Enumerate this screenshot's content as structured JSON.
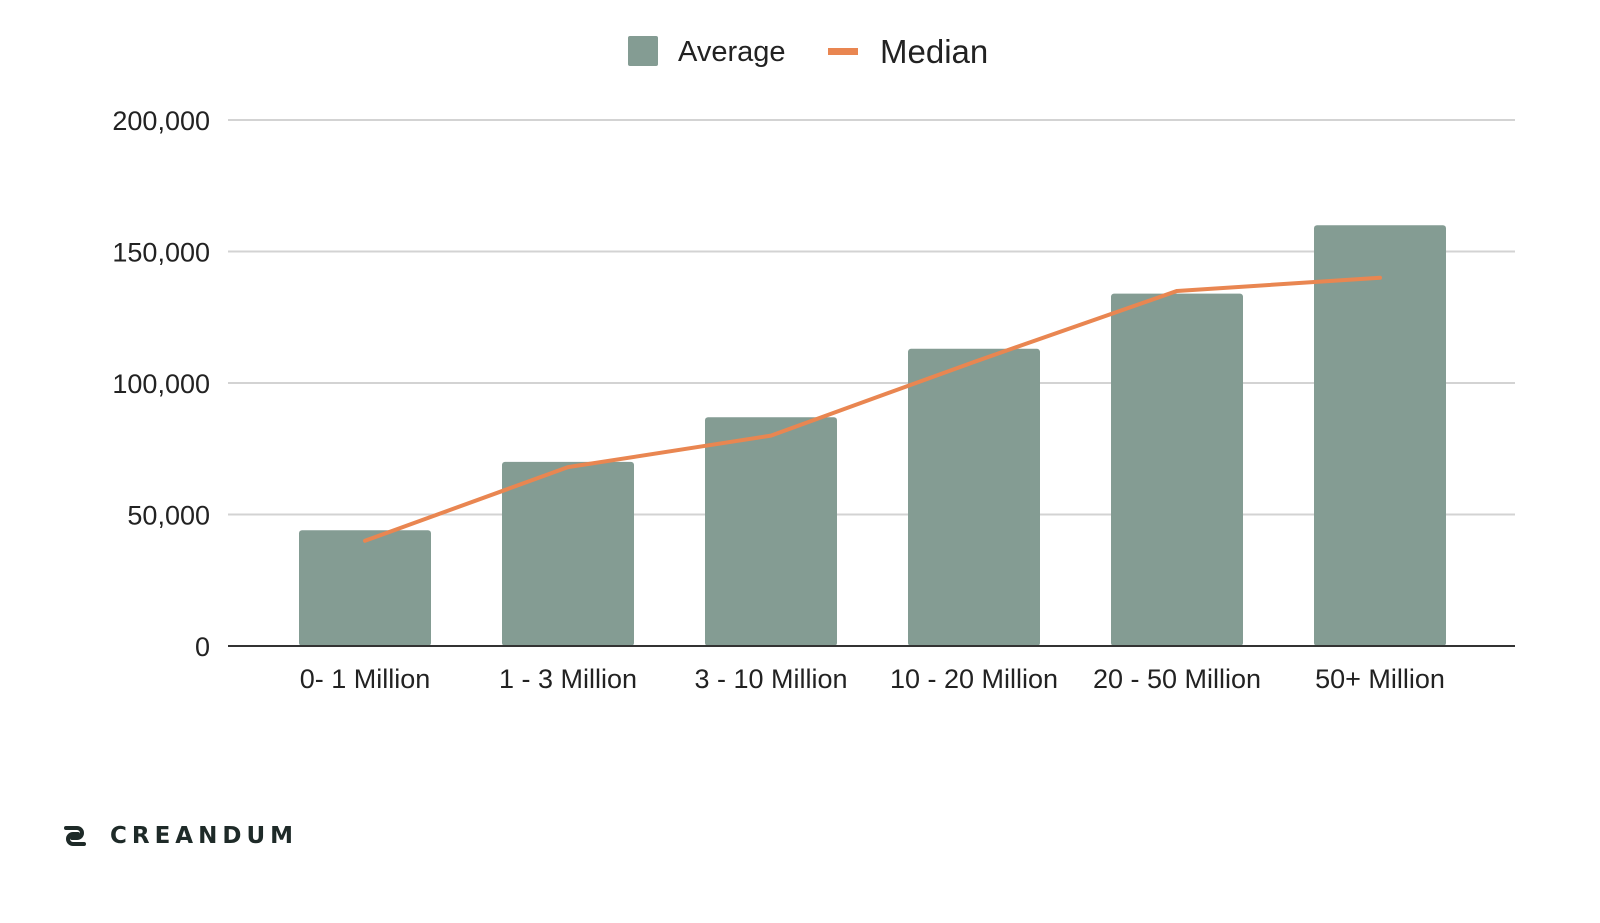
{
  "colors": {
    "average": "#849c93",
    "median": "#e98651",
    "grid": "#d3d3d3",
    "axis": "#333333",
    "text": "#222222"
  },
  "brand": {
    "name": "CREANDUM",
    "logo_icon": "chain-link-icon"
  },
  "chart_data": {
    "type": "bar",
    "title": "",
    "xlabel": "",
    "ylabel": "",
    "categories": [
      "0- 1 Million",
      "1 - 3 Million",
      "3 - 10 Million",
      "10 - 20 Million",
      "20 - 50 Million",
      "50+ Million"
    ],
    "series": [
      {
        "name": "Average",
        "type": "bar",
        "values": [
          44000,
          70000,
          87000,
          113000,
          134000,
          160000
        ]
      },
      {
        "name": "Median",
        "type": "line",
        "values": [
          40000,
          68000,
          80000,
          108000,
          135000,
          140000
        ]
      }
    ],
    "ylim": [
      0,
      200000
    ],
    "yticks": [
      0,
      50000,
      100000,
      150000,
      200000
    ],
    "ytick_labels": [
      "0",
      "50,000",
      "100,000",
      "150,000",
      "200,000"
    ],
    "grid": true,
    "legend": "top-center"
  }
}
